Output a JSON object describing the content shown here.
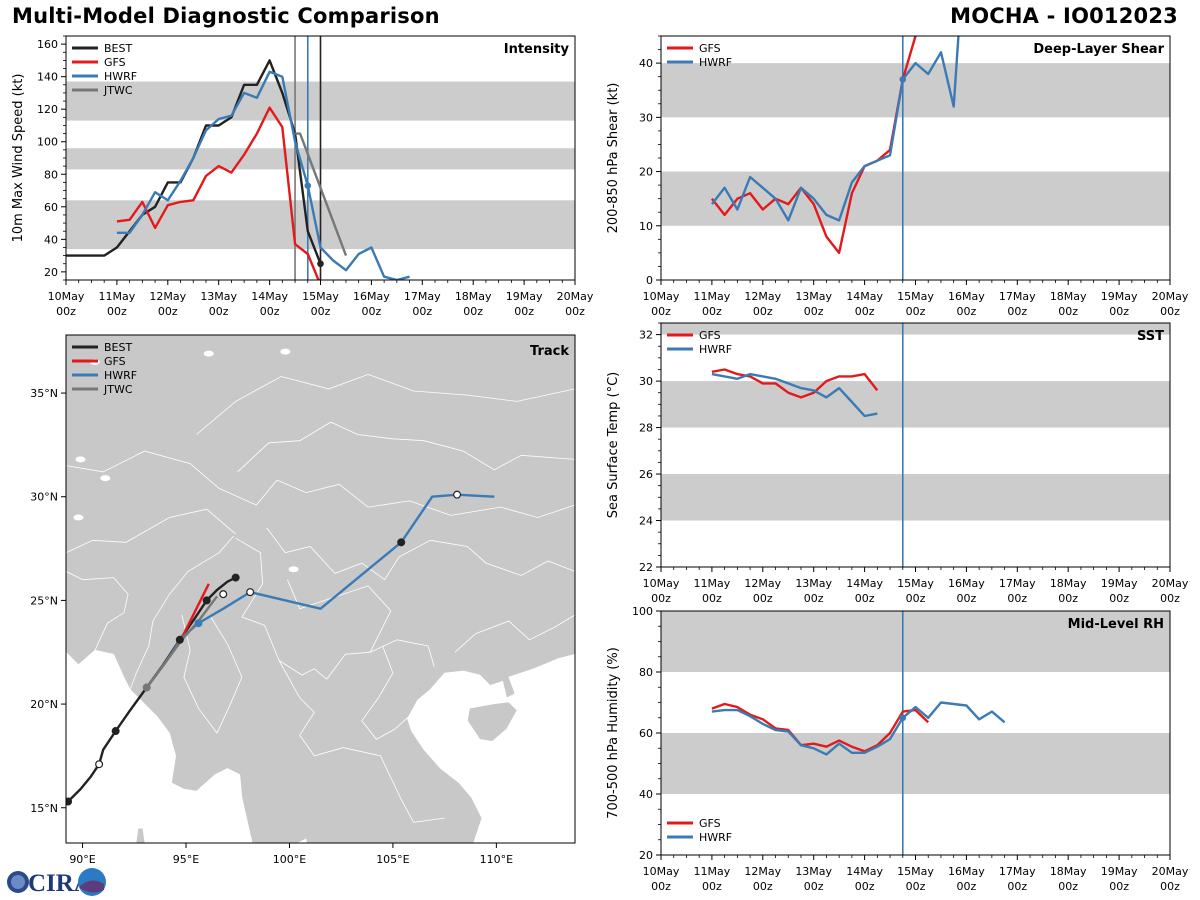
{
  "title_left": "Multi-Model Diagnostic Comparison",
  "title_right": "MOCHA - IO012023",
  "logo_text": "CIRA",
  "colors": {
    "BEST": "#222222",
    "GFS": "#e31a1c",
    "HWRF": "#3b7bb5",
    "JTWC": "#777777",
    "band": "#cccccc",
    "land": "#c8c8c8"
  },
  "time_ticks": [
    "10May",
    "11May",
    "12May",
    "13May",
    "14May",
    "15May",
    "16May",
    "17May",
    "18May",
    "19May",
    "20May"
  ],
  "time_ticks_sub": "00z",
  "chart_data": [
    {
      "id": "intensity",
      "type": "line",
      "panel_label": "Intensity",
      "ylabel": "10m Max Wind Speed (kt)",
      "ylim": [
        15,
        165
      ],
      "yticks": [
        20,
        40,
        60,
        80,
        100,
        120,
        140,
        160
      ],
      "xlim_days": [
        0,
        10
      ],
      "bands": [
        [
          34,
          64
        ],
        [
          83,
          96
        ],
        [
          113,
          137
        ]
      ],
      "vlines": [
        {
          "x": 4.5,
          "color": "JTWC"
        },
        {
          "x": 4.75,
          "color": "HWRF"
        },
        {
          "x": 5.0,
          "color": "BEST"
        }
      ],
      "legend": [
        "BEST",
        "GFS",
        "HWRF",
        "JTWC"
      ],
      "series": [
        {
          "name": "BEST",
          "x": [
            0,
            0.25,
            0.5,
            0.75,
            1,
            1.25,
            1.5,
            1.75,
            2,
            2.25,
            2.5,
            2.75,
            3,
            3.25,
            3.5,
            3.75,
            4,
            4.25,
            4.5,
            4.75,
            5
          ],
          "y": [
            30,
            30,
            30,
            30,
            35,
            45,
            55,
            60,
            75,
            75,
            90,
            110,
            110,
            115,
            135,
            135,
            150,
            130,
            105,
            45,
            25
          ]
        },
        {
          "name": "GFS",
          "x": [
            1,
            1.25,
            1.5,
            1.75,
            2,
            2.25,
            2.5,
            2.75,
            3,
            3.25,
            3.5,
            3.75,
            4,
            4.25,
            4.5,
            4.75,
            5
          ],
          "y": [
            51,
            52,
            63,
            47,
            61,
            63,
            64,
            79,
            85,
            81,
            92,
            105,
            121,
            109,
            37,
            31,
            12
          ]
        },
        {
          "name": "HWRF",
          "x": [
            1,
            1.25,
            1.5,
            1.75,
            2,
            2.25,
            2.5,
            2.75,
            3,
            3.25,
            3.5,
            3.75,
            4,
            4.25,
            4.5,
            4.75,
            5,
            5.25,
            5.5,
            5.75,
            6,
            6.25,
            6.5,
            6.75
          ],
          "y": [
            44,
            44,
            55,
            69,
            64,
            76,
            90,
            107,
            114,
            116,
            130,
            127,
            143,
            140,
            100,
            73,
            35,
            27,
            21,
            31,
            35,
            17,
            15,
            17
          ]
        },
        {
          "name": "JTWC",
          "x": [
            4.5,
            4.6,
            5.5
          ],
          "y": [
            105,
            105,
            30
          ]
        }
      ],
      "markers": [
        {
          "series": "BEST",
          "x": 5.0,
          "y": 25
        },
        {
          "series": "HWRF",
          "x": 4.75,
          "y": 73
        }
      ]
    },
    {
      "id": "shear",
      "type": "line",
      "panel_label": "Deep-Layer Shear",
      "ylabel": "200-850 hPa Shear (kt)",
      "ylim": [
        0,
        45
      ],
      "yticks": [
        0,
        10,
        20,
        30,
        40
      ],
      "xlim_days": [
        0,
        10
      ],
      "bands": [
        [
          10,
          20
        ],
        [
          30,
          40
        ]
      ],
      "vlines": [
        {
          "x": 4.75,
          "color": "HWRF"
        }
      ],
      "legend": [
        "GFS",
        "HWRF"
      ],
      "series": [
        {
          "name": "GFS",
          "x": [
            1,
            1.25,
            1.5,
            1.75,
            2,
            2.25,
            2.5,
            2.75,
            3,
            3.25,
            3.5,
            3.75,
            4,
            4.25,
            4.5,
            4.75,
            5
          ],
          "y": [
            15,
            12,
            15,
            16,
            13,
            15,
            14,
            17,
            14,
            8,
            5,
            16,
            21,
            22,
            24,
            37,
            45
          ]
        },
        {
          "name": "HWRF",
          "x": [
            1,
            1.25,
            1.5,
            1.75,
            2,
            2.25,
            2.5,
            2.75,
            3,
            3.25,
            3.5,
            3.75,
            4,
            4.25,
            4.5,
            4.75,
            5,
            5.25,
            5.5,
            5.75,
            5.85
          ],
          "y": [
            14,
            17,
            13,
            19,
            17,
            15,
            11,
            17,
            15,
            12,
            11,
            18,
            21,
            22,
            23,
            37,
            40,
            38,
            42,
            32,
            46
          ]
        }
      ],
      "markers": [
        {
          "series": "HWRF",
          "x": 4.75,
          "y": 37
        }
      ]
    },
    {
      "id": "sst",
      "type": "line",
      "panel_label": "SST",
      "ylabel": "Sea Surface Temp (°C)",
      "ylim": [
        22,
        32.5
      ],
      "yticks": [
        22,
        24,
        26,
        28,
        30,
        32
      ],
      "xlim_days": [
        0,
        10
      ],
      "bands": [
        [
          24,
          26
        ],
        [
          28,
          30
        ],
        [
          32,
          32.5
        ]
      ],
      "vlines": [
        {
          "x": 4.75,
          "color": "HWRF"
        }
      ],
      "legend": [
        "GFS",
        "HWRF"
      ],
      "series": [
        {
          "name": "GFS",
          "x": [
            1,
            1.25,
            1.5,
            1.75,
            2,
            2.25,
            2.5,
            2.75,
            3,
            3.25,
            3.5,
            3.75,
            4,
            4.25
          ],
          "y": [
            30.4,
            30.5,
            30.3,
            30.2,
            29.9,
            29.9,
            29.5,
            29.3,
            29.5,
            30.0,
            30.2,
            30.2,
            30.3,
            29.6
          ]
        },
        {
          "name": "HWRF",
          "x": [
            1,
            1.25,
            1.5,
            1.75,
            2,
            2.25,
            2.5,
            2.75,
            3,
            3.25,
            3.5,
            3.75,
            4,
            4.25
          ],
          "y": [
            30.3,
            30.2,
            30.1,
            30.3,
            30.2,
            30.1,
            29.9,
            29.7,
            29.6,
            29.3,
            29.7,
            29.1,
            28.5,
            28.6
          ]
        }
      ],
      "markers": []
    },
    {
      "id": "rh",
      "type": "line",
      "panel_label": "Mid-Level RH",
      "ylabel": "700-500 hPa Humidity (%)",
      "ylim": [
        20,
        100
      ],
      "yticks": [
        20,
        40,
        60,
        80,
        100
      ],
      "xlim_days": [
        0,
        10
      ],
      "bands": [
        [
          40,
          60
        ],
        [
          80,
          100
        ]
      ],
      "vlines": [
        {
          "x": 4.75,
          "color": "HWRF"
        }
      ],
      "legend": [
        "GFS",
        "HWRF"
      ],
      "legend_pos": "lower-left",
      "series": [
        {
          "name": "GFS",
          "x": [
            1,
            1.25,
            1.5,
            1.75,
            2,
            2.25,
            2.5,
            2.75,
            3,
            3.25,
            3.5,
            3.75,
            4,
            4.25,
            4.5,
            4.75,
            5,
            5.25
          ],
          "y": [
            68,
            69.5,
            68.5,
            66,
            64.5,
            61.5,
            61,
            56,
            56.5,
            55.5,
            57.5,
            55.5,
            54,
            56,
            60,
            67,
            67.5,
            63.5
          ]
        },
        {
          "name": "HWRF",
          "x": [
            1,
            1.25,
            1.5,
            1.75,
            2,
            2.25,
            2.5,
            2.75,
            3,
            3.25,
            3.5,
            3.75,
            4,
            4.25,
            4.5,
            4.75,
            5,
            5.25,
            5.5,
            5.75,
            6,
            6.25,
            6.5,
            6.75
          ],
          "y": [
            67,
            67.5,
            67.5,
            65.5,
            63,
            61,
            60.5,
            56,
            55,
            53,
            56.5,
            53.5,
            53.5,
            55.5,
            58,
            65,
            68.5,
            65,
            70,
            69.5,
            69,
            64.5,
            67,
            63.5
          ]
        }
      ],
      "markers": [
        {
          "series": "HWRF",
          "x": 4.75,
          "y": 65
        }
      ]
    },
    {
      "id": "track",
      "type": "scatter",
      "panel_label": "Track",
      "xlim": [
        89.2,
        113.8
      ],
      "ylim": [
        13.3,
        37.8
      ],
      "xticks": [
        90,
        95,
        100,
        105,
        110
      ],
      "xtick_labels": [
        "90°E",
        "95°E",
        "100°E",
        "105°E",
        "110°E"
      ],
      "yticks": [
        15,
        20,
        25,
        30,
        35
      ],
      "ytick_labels": [
        "15°N",
        "20°N",
        "25°N",
        "30°N",
        "35°N"
      ],
      "legend": [
        "BEST",
        "GFS",
        "HWRF",
        "JTWC"
      ],
      "series": [
        {
          "name": "BEST",
          "lon": [
            89.3,
            89.9,
            90.4,
            90.8,
            91.0,
            91.6,
            92.3,
            93.1,
            93.9,
            94.7,
            95.4,
            96.0,
            96.5,
            97.0,
            97.4
          ],
          "lat": [
            15.3,
            15.9,
            16.5,
            17.1,
            17.8,
            18.7,
            19.7,
            20.8,
            21.9,
            23.1,
            24.1,
            25.0,
            25.5,
            25.9,
            26.1
          ]
        },
        {
          "name": "GFS",
          "lon": [
            93.1,
            94.0,
            94.8,
            95.5,
            96.1
          ],
          "lat": [
            20.8,
            22.0,
            23.2,
            24.6,
            25.8
          ]
        },
        {
          "name": "HWRF",
          "lon": [
            93.1,
            94.0,
            94.8,
            95.6,
            96.8,
            98.1,
            101.5,
            105.4,
            106.9,
            108.1,
            109.9
          ],
          "lat": [
            20.8,
            22.0,
            23.2,
            23.9,
            24.6,
            25.4,
            24.6,
            27.8,
            30.0,
            30.1,
            30.0
          ]
        },
        {
          "name": "JTWC",
          "lon": [
            93.1,
            94.0,
            94.8,
            95.6,
            96.5
          ],
          "lat": [
            20.8,
            22.0,
            23.1,
            24.0,
            25.2
          ]
        }
      ],
      "markers": [
        {
          "series": "BEST",
          "lon": 89.3,
          "lat": 15.3,
          "filled": true
        },
        {
          "series": "BEST",
          "lon": 90.8,
          "lat": 17.1,
          "filled": false
        },
        {
          "series": "BEST",
          "lon": 91.6,
          "lat": 18.7,
          "filled": true
        },
        {
          "series": "JTWC",
          "lon": 93.1,
          "lat": 20.8,
          "filled": true
        },
        {
          "series": "BEST",
          "lon": 94.7,
          "lat": 23.1,
          "filled": true
        },
        {
          "series": "HWRF",
          "lon": 95.6,
          "lat": 23.9,
          "filled": true
        },
        {
          "series": "BEST",
          "lon": 96.0,
          "lat": 25.0,
          "filled": true
        },
        {
          "series": "BEST",
          "lon": 96.8,
          "lat": 25.3,
          "filled": false
        },
        {
          "series": "BEST",
          "lon": 97.4,
          "lat": 26.1,
          "filled": true
        },
        {
          "series": "BEST",
          "lon": 98.1,
          "lat": 25.4,
          "filled": false
        },
        {
          "series": "BEST",
          "lon": 105.4,
          "lat": 27.8,
          "filled": true
        },
        {
          "series": "BEST",
          "lon": 108.1,
          "lat": 30.1,
          "filled": false
        }
      ]
    }
  ]
}
